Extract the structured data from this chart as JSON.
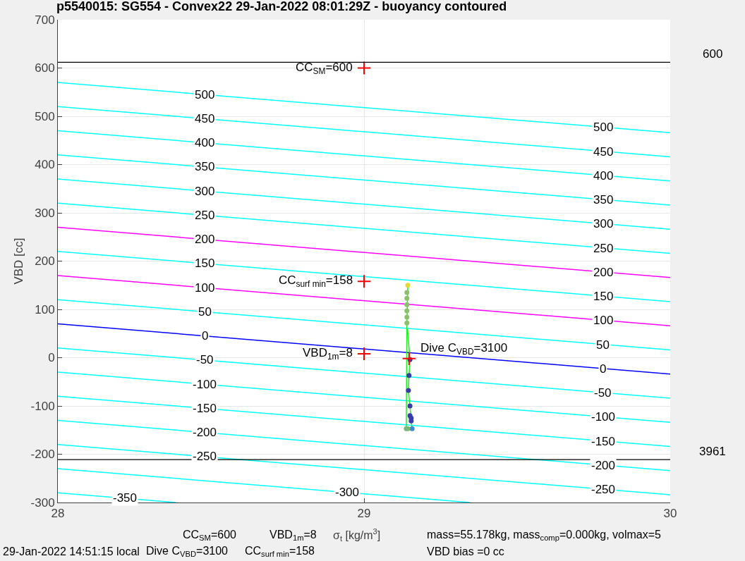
{
  "chart_data": {
    "type": "line",
    "title": "p5540015: SG554 - Convex22 29-Jan-2022 08:01:29Z - buoyancy contoured",
    "xlabel": "σ$_{t}$ [kg/m$^{3}$]",
    "ylabel": "VBD [cc]",
    "xlim": [
      28,
      30
    ],
    "xticks": [
      28,
      29,
      30
    ],
    "ylim": [
      -300,
      700
    ],
    "yticks": [
      -300,
      -200,
      -100,
      0,
      100,
      200,
      300,
      400,
      500,
      600,
      700
    ],
    "grid": true,
    "series": [
      {
        "marker": "none",
        "color": "#00ffff",
        "x": [
          28,
          30
        ],
        "values": [
          570,
          466
        ]
      },
      {
        "marker": "none",
        "color": "#00ffff",
        "x": [
          28,
          30
        ],
        "values": [
          520,
          416
        ]
      },
      {
        "marker": "none",
        "color": "#00ffff",
        "x": [
          28,
          30
        ],
        "values": [
          470,
          366
        ]
      },
      {
        "marker": "none",
        "color": "#00ffff",
        "x": [
          28,
          30
        ],
        "values": [
          420,
          316
        ]
      },
      {
        "marker": "none",
        "color": "#00ffff",
        "x": [
          28,
          30
        ],
        "values": [
          370,
          266
        ]
      },
      {
        "marker": "none",
        "color": "#00ffff",
        "x": [
          28,
          30
        ],
        "values": [
          320,
          216
        ]
      },
      {
        "marker": "none",
        "color": "#ff00ff",
        "x": [
          28,
          30
        ],
        "values": [
          270,
          166
        ]
      },
      {
        "marker": "none",
        "color": "#00ffff",
        "x": [
          28,
          30
        ],
        "values": [
          220,
          116
        ]
      },
      {
        "marker": "none",
        "color": "#ff00ff",
        "x": [
          28,
          30
        ],
        "values": [
          170,
          66
        ]
      },
      {
        "marker": "none",
        "color": "#00ffff",
        "x": [
          28,
          30
        ],
        "values": [
          120,
          16
        ]
      },
      {
        "marker": "none",
        "color": "#0000ff",
        "x": [
          28,
          30
        ],
        "values": [
          70,
          -34
        ]
      },
      {
        "marker": "none",
        "color": "#00ffff",
        "x": [
          28,
          30
        ],
        "values": [
          20,
          -84
        ]
      },
      {
        "marker": "none",
        "color": "#00ffff",
        "x": [
          28,
          30
        ],
        "values": [
          -30,
          -134
        ]
      },
      {
        "marker": "none",
        "color": "#00ffff",
        "x": [
          28,
          30
        ],
        "values": [
          -80,
          -184
        ]
      },
      {
        "marker": "none",
        "color": "#00ffff",
        "x": [
          28,
          30
        ],
        "values": [
          -130,
          -234
        ]
      },
      {
        "marker": "none",
        "color": "#00ffff",
        "x": [
          28,
          30
        ],
        "values": [
          -180,
          -284
        ]
      },
      {
        "marker": "none",
        "color": "#00ffff",
        "x": [
          28,
          29.346
        ],
        "values": [
          -230,
          -300
        ]
      },
      {
        "marker": "none",
        "color": "#00ffff",
        "x": [
          28,
          28.385
        ],
        "values": [
          -280,
          -300
        ]
      },
      {
        "marker": "none",
        "color": "#22ee22",
        "x": [
          29.143,
          29.14,
          29.138,
          29.143,
          29.157,
          29.154,
          29.15,
          29.145,
          29.147,
          29.15,
          29.142
        ],
        "values": [
          150,
          72,
          -147,
          -147,
          -147,
          -131,
          -100,
          -68,
          -37,
          -4,
          60
        ]
      },
      {
        "type": "scatter",
        "marker": "circle",
        "x": [
          29.143,
          29.14,
          29.14,
          29.14,
          29.14,
          29.14,
          29.14,
          29.15,
          29.147,
          29.145,
          29.15,
          29.15,
          29.154,
          29.154,
          29.157,
          29.138,
          29.143
        ],
        "values": [
          150,
          135,
          123,
          110,
          97,
          84,
          72,
          -4,
          -37,
          -68,
          -100,
          -120,
          -125,
          -131,
          -147,
          -147,
          -147
        ],
        "colors": [
          "#e8d830",
          "#8cbf6c",
          "#8cbf6c",
          "#8cbf6c",
          "#8cbf6c",
          "#8cbf6c",
          "#8cbf6c",
          "#3a3aa8",
          "#3a3aa8",
          "#3a3aa8",
          "#3a3aa8",
          "#3a3aa8",
          "#3a3aa8",
          "#3a3aa8",
          "#3a8ac8",
          "#7ab87a",
          "#7ab87a"
        ]
      },
      {
        "type": "scatter",
        "marker": "cross",
        "color": "#ff0000",
        "x": [
          29,
          29,
          29,
          29.147
        ],
        "values": [
          600,
          158,
          8,
          -2
        ]
      }
    ],
    "ref_lines": [
      {
        "axis": "y",
        "value": 612,
        "color": "#000000"
      },
      {
        "axis": "y",
        "value": -211,
        "color": "#000000"
      }
    ],
    "annotations": [
      {
        "text": "500",
        "x": 28.48,
        "y": 545
      },
      {
        "text": "450",
        "x": 28.48,
        "y": 495
      },
      {
        "text": "400",
        "x": 28.48,
        "y": 445
      },
      {
        "text": "350",
        "x": 28.48,
        "y": 395
      },
      {
        "text": "300",
        "x": 28.48,
        "y": 345
      },
      {
        "text": "250",
        "x": 28.48,
        "y": 295
      },
      {
        "text": "200",
        "x": 28.48,
        "y": 245
      },
      {
        "text": "150",
        "x": 28.48,
        "y": 195
      },
      {
        "text": "100",
        "x": 28.48,
        "y": 145
      },
      {
        "text": "50",
        "x": 28.48,
        "y": 95
      },
      {
        "text": "0",
        "x": 28.48,
        "y": 45
      },
      {
        "text": "-50",
        "x": 28.48,
        "y": -5
      },
      {
        "text": "-100",
        "x": 28.48,
        "y": -55
      },
      {
        "text": "-150",
        "x": 28.48,
        "y": -105
      },
      {
        "text": "-200",
        "x": 28.48,
        "y": -155
      },
      {
        "text": "-250",
        "x": 28.48,
        "y": -205
      },
      {
        "text": "-300",
        "x": 28.945,
        "y": -279
      },
      {
        "text": "-350",
        "x": 28.22,
        "y": -291
      },
      {
        "text": "500",
        "x": 29.78,
        "y": 477
      },
      {
        "text": "450",
        "x": 29.78,
        "y": 427
      },
      {
        "text": "400",
        "x": 29.78,
        "y": 377
      },
      {
        "text": "350",
        "x": 29.78,
        "y": 327
      },
      {
        "text": "300",
        "x": 29.78,
        "y": 277
      },
      {
        "text": "250",
        "x": 29.78,
        "y": 227
      },
      {
        "text": "200",
        "x": 29.78,
        "y": 177
      },
      {
        "text": "150",
        "x": 29.78,
        "y": 127
      },
      {
        "text": "100",
        "x": 29.78,
        "y": 77
      },
      {
        "text": "50",
        "x": 29.78,
        "y": 27
      },
      {
        "text": "0",
        "x": 29.78,
        "y": -23
      },
      {
        "text": "-50",
        "x": 29.78,
        "y": -73
      },
      {
        "text": "-100",
        "x": 29.78,
        "y": -123
      },
      {
        "text": "-150",
        "x": 29.78,
        "y": -173
      },
      {
        "text": "-200",
        "x": 29.78,
        "y": -223
      },
      {
        "text": "-250",
        "x": 29.78,
        "y": -273
      },
      {
        "text": "CC$_{SM}$=600",
        "x": 29,
        "y": 600
      },
      {
        "text": "CC$_{surf min}$=158",
        "x": 29,
        "y": 158
      },
      {
        "text": "VBD$_{1m}$=8",
        "x": 29,
        "y": 8
      },
      {
        "text": "Dive C$_{VBD}$=3100",
        "x": 29.147,
        "y": -2
      },
      "600",
      "3961",
      "CC$_{SM}$=600",
      "VBD$_{1m}$=8",
      "mass=55.178kg, mass$_{comp}$=0.000kg, volmax=5",
      "29-Jan-2022 14:51:15 local",
      "Dive C$_{VBD}$=3100",
      "CC$_{surf min}$=158",
      "VBD bias =0 cc"
    ]
  }
}
